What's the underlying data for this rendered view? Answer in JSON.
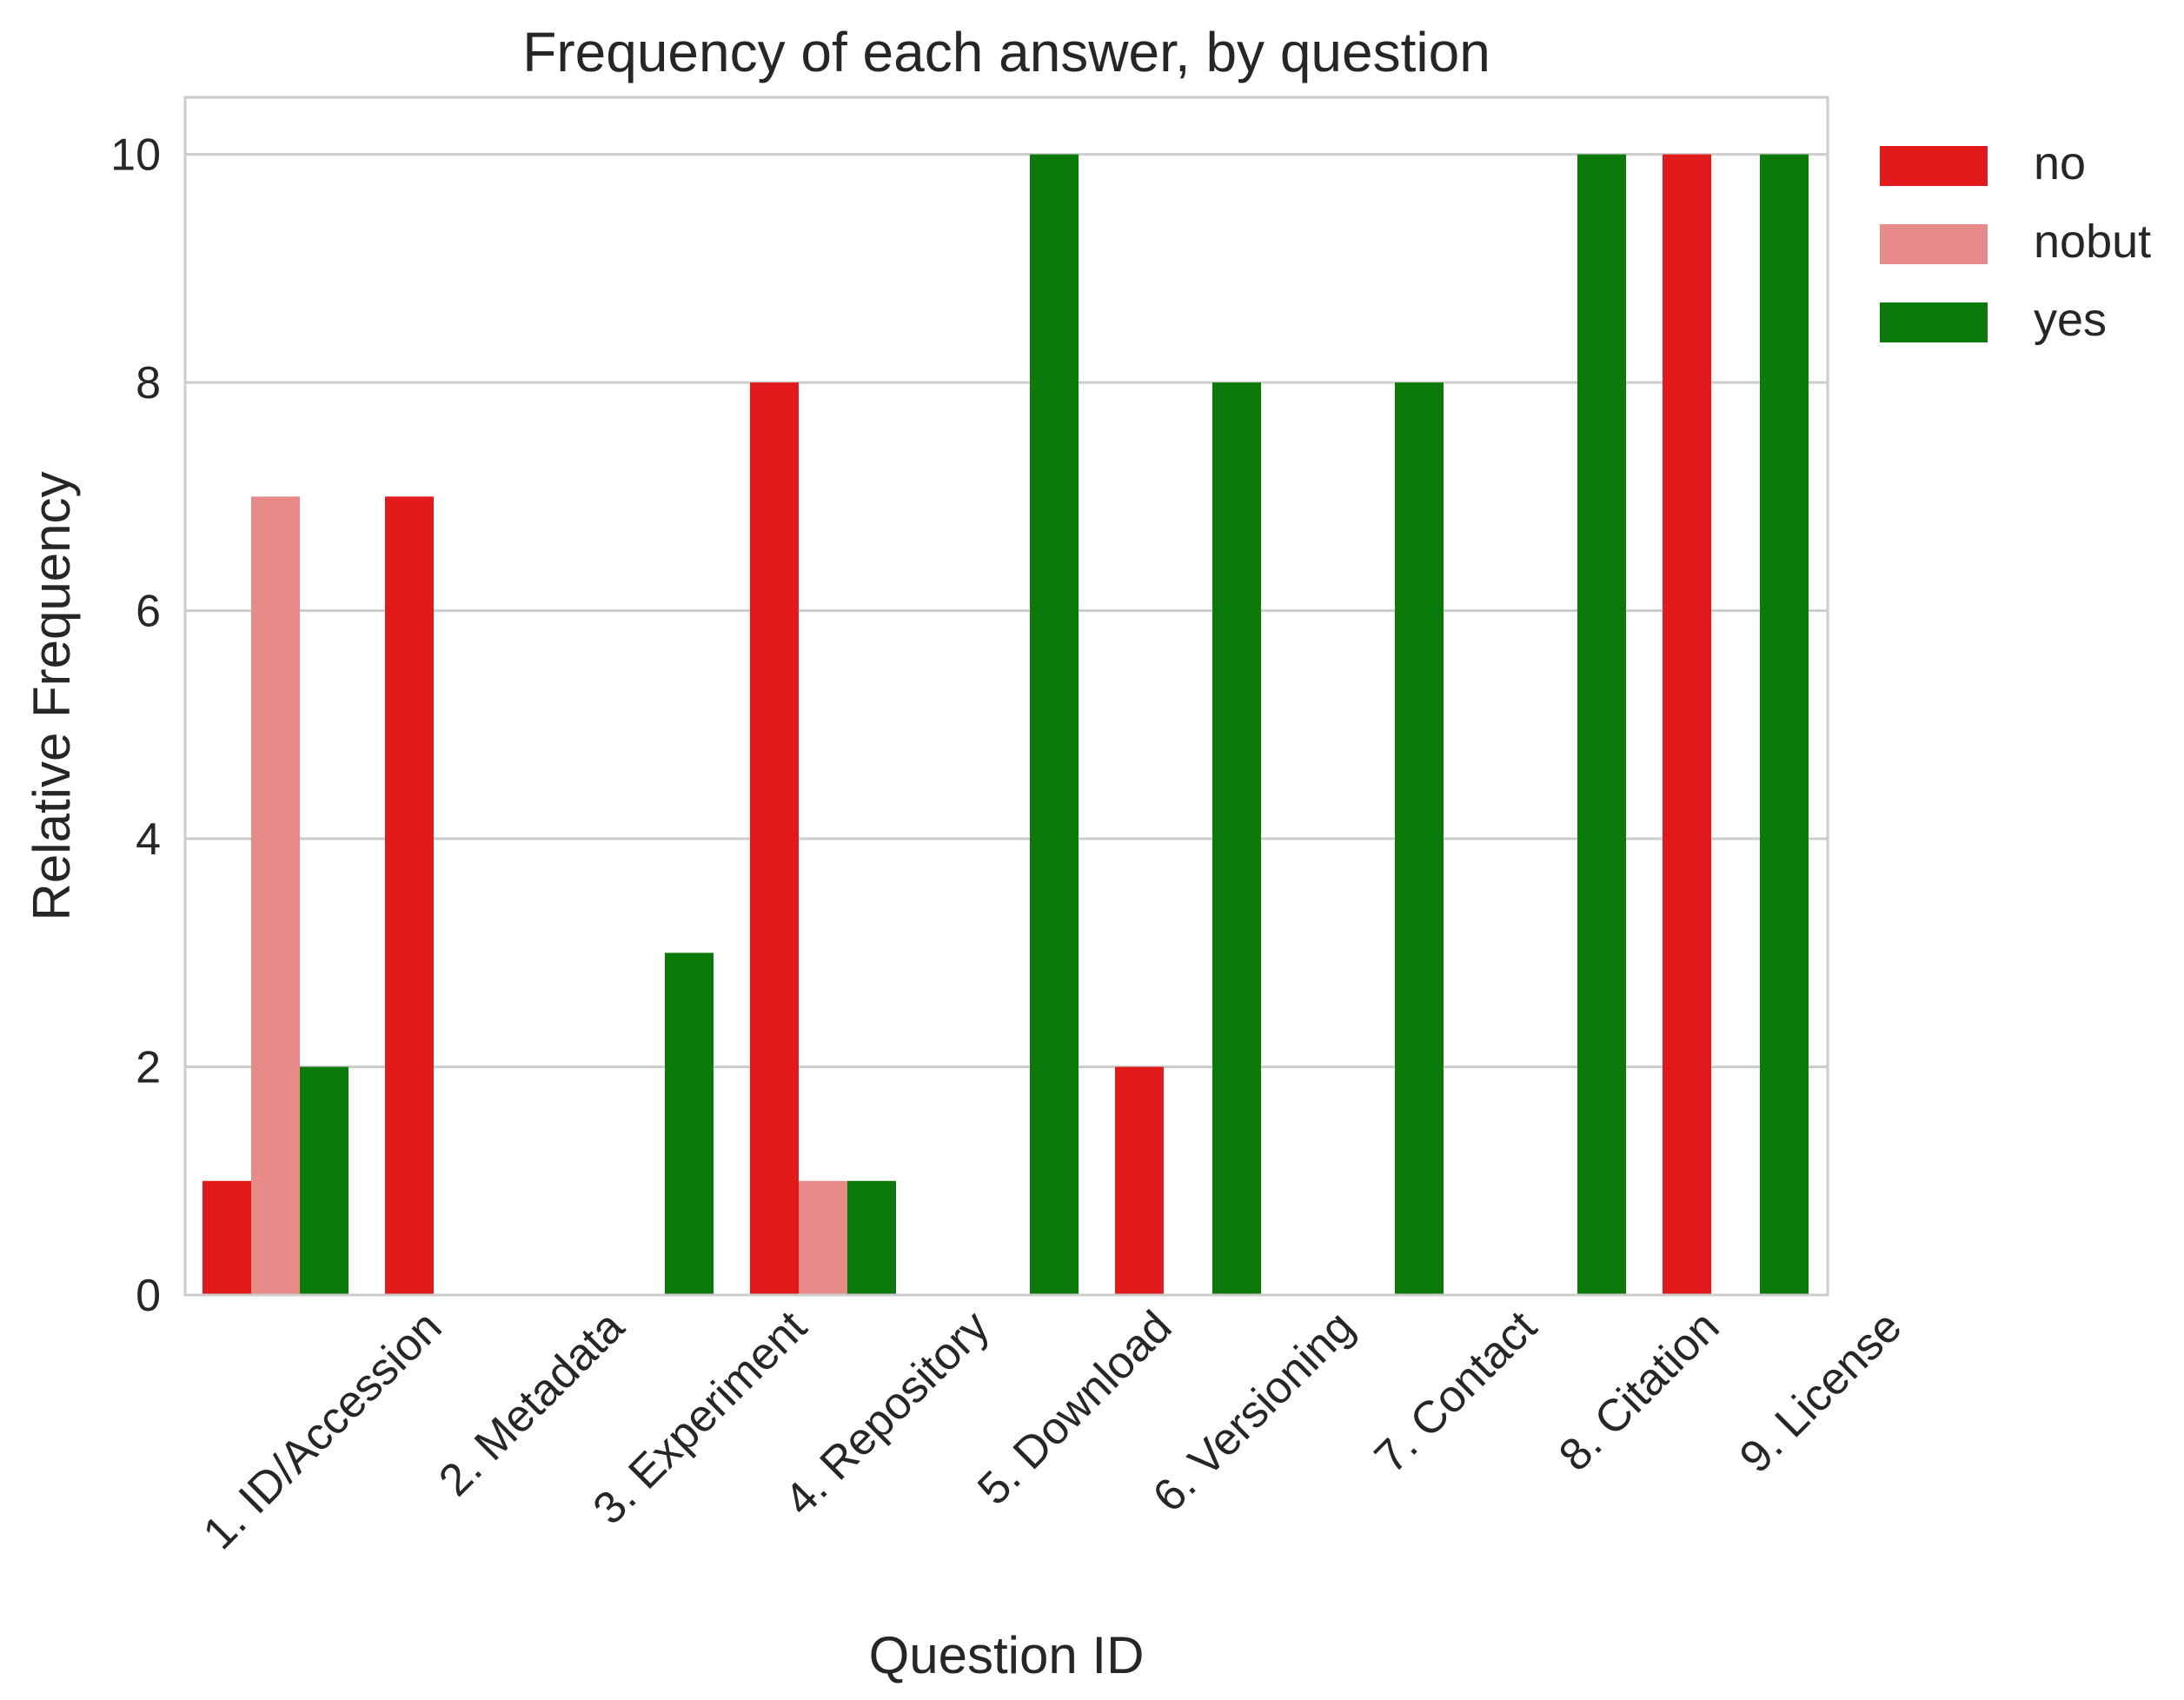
{
  "chart_data": {
    "type": "bar",
    "title": "Frequency of each answer, by question",
    "xlabel": "Question ID",
    "ylabel": "Relative Frequency",
    "ylim": [
      0,
      10.5
    ],
    "yticks": [
      0,
      2,
      4,
      6,
      8,
      10
    ],
    "grid": "horizontal",
    "legend_position": "outside-top-right",
    "categories": [
      "1. ID/Accession",
      "2. Metadata",
      "3. Experiment",
      "4. Repository",
      "5. Download",
      "6. Versioning",
      "7. Contact",
      "8. Citation",
      "9. License"
    ],
    "series": [
      {
        "name": "no",
        "color": "#e31a1c",
        "values": [
          1,
          7,
          0,
          8,
          0,
          2,
          0,
          0,
          10
        ]
      },
      {
        "name": "nobut",
        "color": "#e88a8a",
        "values": [
          7,
          0,
          0,
          1,
          0,
          0,
          0,
          0,
          0
        ]
      },
      {
        "name": "yes",
        "color": "#0a7a0a",
        "values": [
          2,
          0,
          3,
          1,
          10,
          8,
          8,
          10,
          10
        ]
      }
    ]
  },
  "colors": {
    "frame": "#cccccc",
    "grid": "#cccccc",
    "text": "#262626"
  }
}
